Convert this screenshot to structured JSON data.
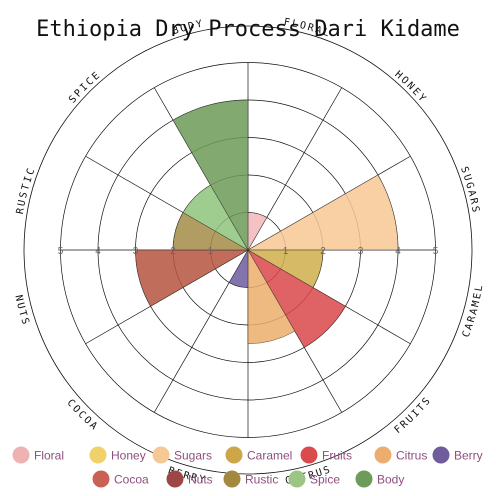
{
  "chart_data": {
    "type": "polar-bar",
    "title": "Ethiopia Dry Process Dari Kidame",
    "rlim": [
      0,
      5
    ],
    "ring_labels": [
      "1",
      "2",
      "3",
      "4",
      "5"
    ],
    "categories": [
      "Floral",
      "Honey",
      "Sugars",
      "Caramel",
      "Fruits",
      "Citrus",
      "Berry",
      "Cocoa",
      "Nuts",
      "Rustic",
      "Spice",
      "Body"
    ],
    "values": [
      1,
      0,
      4,
      2,
      3,
      2.5,
      1,
      0,
      3,
      2,
      2,
      4
    ],
    "colors": [
      "#f2b7b8",
      "#f1d56f",
      "#f7c894",
      "#cfae4a",
      "#d9464a",
      "#ecad6c",
      "#6e5a9e",
      "#c96252",
      "#b5543f",
      "#a38b45",
      "#8ec47d",
      "#6c9b57"
    ],
    "legend_rows": [
      [
        "Floral",
        "Honey",
        "Sugars",
        "Caramel",
        "Fruits",
        "Citrus",
        "Berry"
      ],
      [
        "Cocoa",
        "Nuts",
        "Rustic",
        "Spice",
        "Body"
      ]
    ],
    "legend_colors": [
      "#eeb2b3",
      "#f0d16b",
      "#f6c896",
      "#cda64a",
      "#db4a4c",
      "#ecae6f",
      "#6f5c9c",
      "#c96253",
      "#9c4746",
      "#a3893f",
      "#9cc482",
      "#6c9c58"
    ],
    "legend_position": "bottom",
    "ring_label_angle_offset": 90,
    "fill_alpha": 0.85
  }
}
